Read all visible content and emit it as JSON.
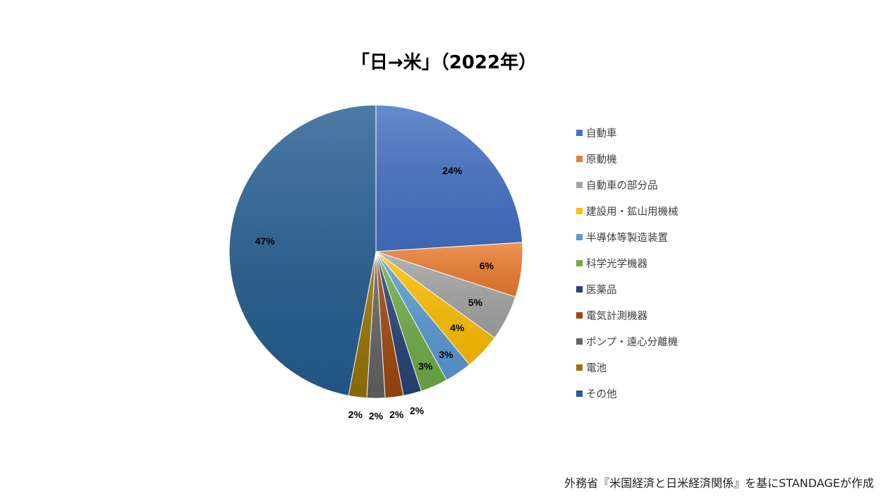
{
  "chart_data": {
    "type": "pie",
    "title": "「日→米」（2022年）",
    "slices": [
      {
        "label": "自動車",
        "value": 24,
        "display": "24%",
        "color": "#4472c4"
      },
      {
        "label": "原動機",
        "value": 6,
        "display": "6%",
        "color": "#ed7d31"
      },
      {
        "label": "自動車の部分品",
        "value": 5,
        "display": "5%",
        "color": "#a5a5a5"
      },
      {
        "label": "建設用・鉱山用機械",
        "value": 4,
        "display": "4%",
        "color": "#ffc000"
      },
      {
        "label": "半導体等製造装置",
        "value": 3,
        "display": "3%",
        "color": "#5b9bd5"
      },
      {
        "label": "科学光学機器",
        "value": 3,
        "display": "3%",
        "color": "#70ad47"
      },
      {
        "label": "医薬品",
        "value": 2,
        "display": "2%",
        "color": "#264478"
      },
      {
        "label": "電気計測機器",
        "value": 2,
        "display": "2%",
        "color": "#9e480e"
      },
      {
        "label": "ポンプ・遠心分離機",
        "value": 2,
        "display": "2%",
        "color": "#636363"
      },
      {
        "label": "電池",
        "value": 2,
        "display": "2%",
        "color": "#997300"
      },
      {
        "label": "その他",
        "value": 47,
        "display": "47%",
        "color": "#255e91"
      }
    ],
    "legend_position": "right",
    "start_angle": "12 o'clock, clockwise"
  },
  "source_note": "外務省『米国経済と日米経済関係』を基にSTANDAGEが作成"
}
